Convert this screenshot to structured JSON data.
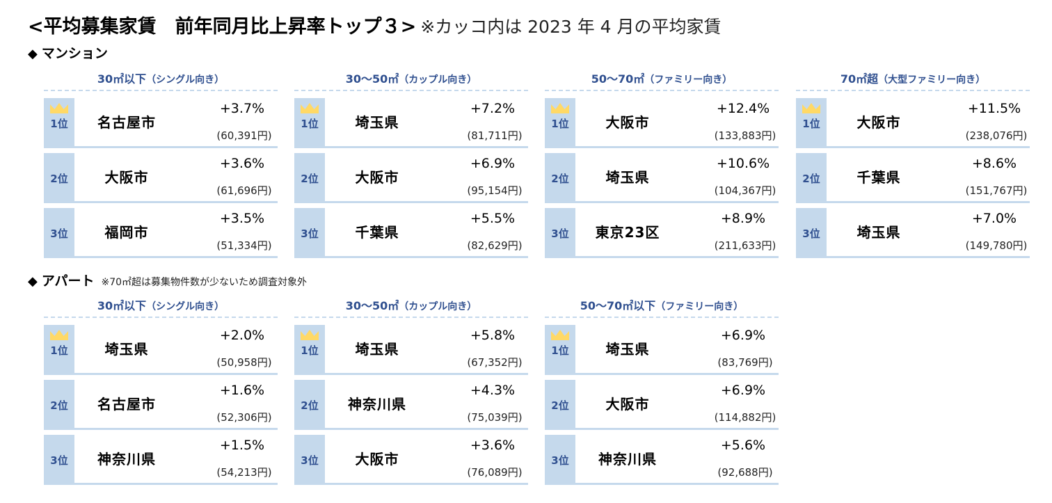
{
  "title": {
    "main": "<平均募集家賃　前年同月比上昇率トップ３>",
    "note": "※カッコ内は 2023 年 4 月の平均家賃"
  },
  "mansion": {
    "heading": "マンション",
    "diamond": "◆",
    "blocks": [
      {
        "size": "30㎡以下",
        "type": "（シングル向き）",
        "rows": [
          {
            "rank": "1位",
            "place": "名古屋市",
            "rate": "+3.7%",
            "rent": "(60,391円)"
          },
          {
            "rank": "2位",
            "place": "大阪市",
            "rate": "+3.6%",
            "rent": "(61,696円)"
          },
          {
            "rank": "3位",
            "place": "福岡市",
            "rate": "+3.5%",
            "rent": "(51,334円)"
          }
        ]
      },
      {
        "size": "30～50㎡",
        "type": "（カップル向き）",
        "rows": [
          {
            "rank": "1位",
            "place": "埼玉県",
            "rate": "+7.2%",
            "rent": "(81,711円)"
          },
          {
            "rank": "2位",
            "place": "大阪市",
            "rate": "+6.9%",
            "rent": "(95,154円)"
          },
          {
            "rank": "3位",
            "place": "千葉県",
            "rate": "+5.5%",
            "rent": "(82,629円)"
          }
        ]
      },
      {
        "size": "50～70㎡",
        "type": "（ファミリー向き）",
        "rows": [
          {
            "rank": "1位",
            "place": "大阪市",
            "rate": "+12.4%",
            "rent": "(133,883円)"
          },
          {
            "rank": "2位",
            "place": "埼玉県",
            "rate": "+10.6%",
            "rent": "(104,367円)"
          },
          {
            "rank": "3位",
            "place": "東京23区",
            "rate": "+8.9%",
            "rent": "(211,633円)"
          }
        ]
      },
      {
        "size": "70㎡超",
        "type": "（大型ファミリー向き）",
        "rows": [
          {
            "rank": "1位",
            "place": "大阪市",
            "rate": "+11.5%",
            "rent": "(238,076円)"
          },
          {
            "rank": "2位",
            "place": "千葉県",
            "rate": "+8.6%",
            "rent": "(151,767円)"
          },
          {
            "rank": "3位",
            "place": "埼玉県",
            "rate": "+7.0%",
            "rent": "(149,780円)"
          }
        ]
      }
    ]
  },
  "apartment": {
    "heading": "アパート",
    "diamond": "◆",
    "note": "※70㎡超は募集物件数が少ないため調査対象外",
    "blocks": [
      {
        "size": "30㎡以下",
        "type": "（シングル向き）",
        "rows": [
          {
            "rank": "1位",
            "place": "埼玉県",
            "rate": "+2.0%",
            "rent": "(50,958円)"
          },
          {
            "rank": "2位",
            "place": "名古屋市",
            "rate": "+1.6%",
            "rent": "(52,306円)"
          },
          {
            "rank": "3位",
            "place": "神奈川県",
            "rate": "+1.5%",
            "rent": "(54,213円)"
          }
        ]
      },
      {
        "size": "30～50㎡",
        "type": "（カップル向き）",
        "rows": [
          {
            "rank": "1位",
            "place": "埼玉県",
            "rate": "+5.8%",
            "rent": "(67,352円)"
          },
          {
            "rank": "2位",
            "place": "神奈川県",
            "rate": "+4.3%",
            "rent": "(75,039円)"
          },
          {
            "rank": "3位",
            "place": "大阪市",
            "rate": "+3.6%",
            "rent": "(76,089円)"
          }
        ]
      },
      {
        "size": "50～70㎡以下",
        "type": "（ファミリー向き）",
        "rows": [
          {
            "rank": "1位",
            "place": "埼玉県",
            "rate": "+6.9%",
            "rent": "(83,769円)"
          },
          {
            "rank": "2位",
            "place": "大阪市",
            "rate": "+6.9%",
            "rent": "(114,882円)"
          },
          {
            "rank": "3位",
            "place": "神奈川県",
            "rate": "+5.6%",
            "rent": "(92,688円)"
          }
        ]
      }
    ]
  },
  "colors": {
    "accent_text": "#2f4f8f",
    "rank_bg": "#c5d9ec",
    "crown": "#ffd966"
  },
  "icons": {
    "crown": "crown-icon",
    "diamond": "diamond-bullet"
  }
}
